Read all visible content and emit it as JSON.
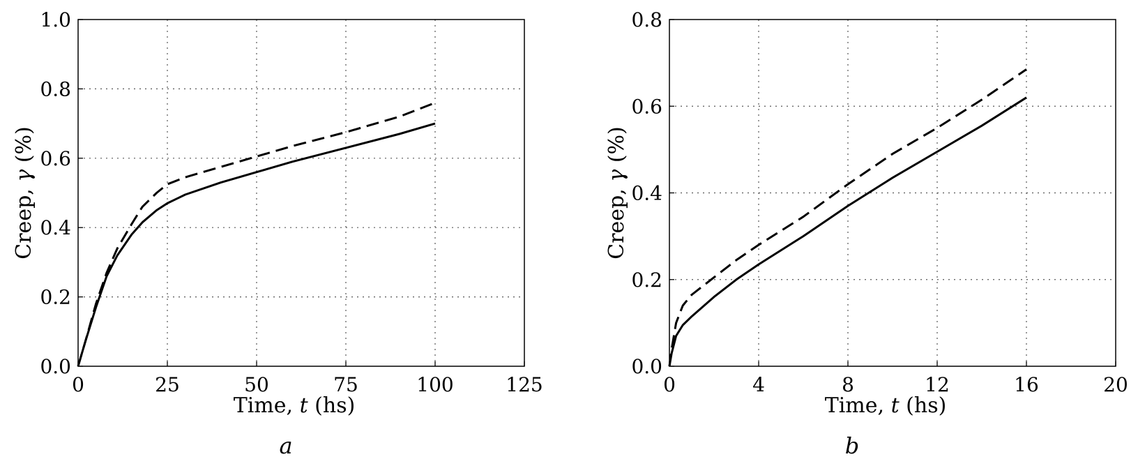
{
  "chart_data": [
    {
      "type": "line",
      "panel_label": "a",
      "xlabel": {
        "prefix": "Time, ",
        "var": "t",
        "suffix": " (hs)"
      },
      "ylabel": {
        "prefix": "Creep, ",
        "var": "γ",
        "suffix": " (%)"
      },
      "xlim": [
        0,
        125
      ],
      "ylim": [
        0,
        1.0
      ],
      "xticks": [
        0,
        25,
        50,
        75,
        100,
        125
      ],
      "yticks": [
        0.0,
        0.2,
        0.4,
        0.6,
        0.8,
        1.0
      ],
      "xtick_labels": [
        "0",
        "25",
        "50",
        "75",
        "100",
        "125"
      ],
      "ytick_labels": [
        "0.0",
        "0.2",
        "0.4",
        "0.6",
        "0.8",
        "1.0"
      ],
      "grid": true,
      "series": [
        {
          "style": "solid",
          "points": [
            [
              0,
              0
            ],
            [
              2,
              0.07
            ],
            [
              5,
              0.17
            ],
            [
              8,
              0.26
            ],
            [
              11,
              0.32
            ],
            [
              15,
              0.38
            ],
            [
              18,
              0.415
            ],
            [
              22,
              0.45
            ],
            [
              25,
              0.47
            ],
            [
              30,
              0.495
            ],
            [
              40,
              0.53
            ],
            [
              50,
              0.56
            ],
            [
              60,
              0.59
            ],
            [
              75,
              0.63
            ],
            [
              90,
              0.67
            ],
            [
              100,
              0.7
            ]
          ]
        },
        {
          "style": "dashed",
          "points": [
            [
              0,
              0
            ],
            [
              2,
              0.07
            ],
            [
              5,
              0.18
            ],
            [
              8,
              0.27
            ],
            [
              11,
              0.34
            ],
            [
              15,
              0.41
            ],
            [
              18,
              0.46
            ],
            [
              22,
              0.5
            ],
            [
              25,
              0.525
            ],
            [
              30,
              0.545
            ],
            [
              40,
              0.575
            ],
            [
              50,
              0.605
            ],
            [
              60,
              0.635
            ],
            [
              75,
              0.675
            ],
            [
              90,
              0.72
            ],
            [
              100,
              0.76
            ]
          ]
        }
      ]
    },
    {
      "type": "line",
      "panel_label": "b",
      "xlabel": {
        "prefix": "Time, ",
        "var": "t",
        "suffix": " (hs)"
      },
      "ylabel": {
        "prefix": "Creep, ",
        "var": "γ",
        "suffix": " (%)"
      },
      "xlim": [
        0,
        20
      ],
      "ylim": [
        0,
        0.8
      ],
      "xticks": [
        0,
        4,
        8,
        12,
        16,
        20
      ],
      "yticks": [
        0.0,
        0.2,
        0.4,
        0.6,
        0.8
      ],
      "xtick_labels": [
        "0",
        "4",
        "8",
        "12",
        "16",
        "20"
      ],
      "ytick_labels": [
        "0.0",
        "0.2",
        "0.4",
        "0.6",
        "0.8"
      ],
      "grid": true,
      "series": [
        {
          "style": "solid",
          "points": [
            [
              0,
              0
            ],
            [
              0.1,
              0.03
            ],
            [
              0.3,
              0.07
            ],
            [
              0.6,
              0.095
            ],
            [
              1,
              0.115
            ],
            [
              2,
              0.16
            ],
            [
              3,
              0.2
            ],
            [
              4,
              0.235
            ],
            [
              6,
              0.3
            ],
            [
              8,
              0.37
            ],
            [
              10,
              0.435
            ],
            [
              12,
              0.495
            ],
            [
              14,
              0.555
            ],
            [
              16,
              0.62
            ]
          ]
        },
        {
          "style": "dashed",
          "points": [
            [
              0,
              0
            ],
            [
              0.1,
              0.04
            ],
            [
              0.3,
              0.1
            ],
            [
              0.6,
              0.14
            ],
            [
              1,
              0.165
            ],
            [
              2,
              0.205
            ],
            [
              3,
              0.245
            ],
            [
              4,
              0.28
            ],
            [
              6,
              0.345
            ],
            [
              8,
              0.42
            ],
            [
              10,
              0.49
            ],
            [
              12,
              0.55
            ],
            [
              14,
              0.615
            ],
            [
              16,
              0.685
            ]
          ]
        }
      ]
    }
  ]
}
